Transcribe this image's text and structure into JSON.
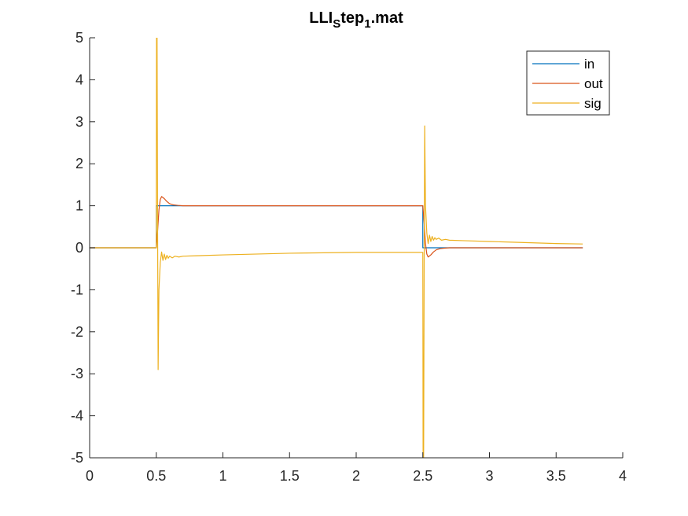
{
  "chart_data": {
    "type": "line",
    "title": {
      "parts": [
        {
          "text": "LLI",
          "style": "normal"
        },
        {
          "text": "S",
          "style": "sub"
        },
        {
          "text": "tep",
          "style": "normal"
        },
        {
          "text": "1",
          "style": "sub"
        },
        {
          "text": ".mat",
          "style": "normal"
        }
      ]
    },
    "xlabel": "",
    "ylabel": "",
    "xlim": [
      0,
      4
    ],
    "ylim": [
      -5,
      5
    ],
    "xticks": [
      0,
      0.5,
      1,
      1.5,
      2,
      2.5,
      3,
      3.5,
      4
    ],
    "yticks": [
      -5,
      -4,
      -3,
      -2,
      -1,
      0,
      1,
      2,
      3,
      4,
      5
    ],
    "xtick_labels": [
      "0",
      "0.5",
      "1",
      "1.5",
      "2",
      "2.5",
      "3",
      "3.5",
      "4"
    ],
    "ytick_labels": [
      "-5",
      "-4",
      "-3",
      "-2",
      "-1",
      "0",
      "1",
      "2",
      "3",
      "4",
      "5"
    ],
    "grid": false,
    "legend": {
      "position": "top-right",
      "entries": [
        "in",
        "out",
        "sig"
      ]
    },
    "series": [
      {
        "name": "in",
        "color": "#0072BD",
        "x": [
          0,
          0.5,
          0.5,
          2.5,
          2.5,
          3.7
        ],
        "y": [
          0,
          0,
          1,
          1,
          0,
          0
        ]
      },
      {
        "name": "out",
        "color": "#D95319",
        "x": [
          0,
          0.5,
          0.51,
          0.52,
          0.53,
          0.54,
          0.56,
          0.58,
          0.6,
          0.63,
          0.66,
          0.7,
          0.8,
          1.0,
          2.5,
          2.51,
          2.52,
          2.53,
          2.54,
          2.56,
          2.58,
          2.6,
          2.63,
          2.66,
          2.7,
          2.8,
          3.0,
          3.7
        ],
        "y": [
          0,
          0,
          0.4,
          0.9,
          1.15,
          1.22,
          1.17,
          1.1,
          1.05,
          1.02,
          1.01,
          1.0,
          1.0,
          1.0,
          1.0,
          0.6,
          0.1,
          -0.15,
          -0.22,
          -0.17,
          -0.1,
          -0.05,
          -0.02,
          -0.01,
          0.0,
          0.0,
          0.0,
          0.0
        ]
      },
      {
        "name": "sig",
        "color": "#EDB120",
        "x": [
          0,
          0.5,
          0.502,
          0.506,
          0.51,
          0.514,
          0.52,
          0.53,
          0.54,
          0.55,
          0.56,
          0.57,
          0.58,
          0.59,
          0.6,
          0.62,
          0.64,
          0.67,
          0.7,
          0.8,
          1.0,
          1.5,
          2.0,
          2.3,
          2.5,
          2.502,
          2.506,
          2.51,
          2.514,
          2.52,
          2.53,
          2.54,
          2.55,
          2.56,
          2.57,
          2.58,
          2.59,
          2.6,
          2.62,
          2.64,
          2.67,
          2.7,
          2.8,
          3.0,
          3.5,
          3.7
        ],
        "y": [
          0,
          0,
          5,
          5,
          0.5,
          -2.9,
          -1.0,
          -0.35,
          -0.1,
          -0.3,
          -0.15,
          -0.28,
          -0.18,
          -0.25,
          -0.2,
          -0.24,
          -0.2,
          -0.22,
          -0.2,
          -0.19,
          -0.17,
          -0.13,
          -0.11,
          -0.11,
          -0.11,
          -5,
          -5,
          -0.5,
          2.9,
          1.0,
          0.35,
          0.1,
          0.3,
          0.15,
          0.27,
          0.18,
          0.24,
          0.2,
          0.23,
          0.18,
          0.2,
          0.18,
          0.17,
          0.15,
          0.1,
          0.09
        ]
      }
    ]
  }
}
